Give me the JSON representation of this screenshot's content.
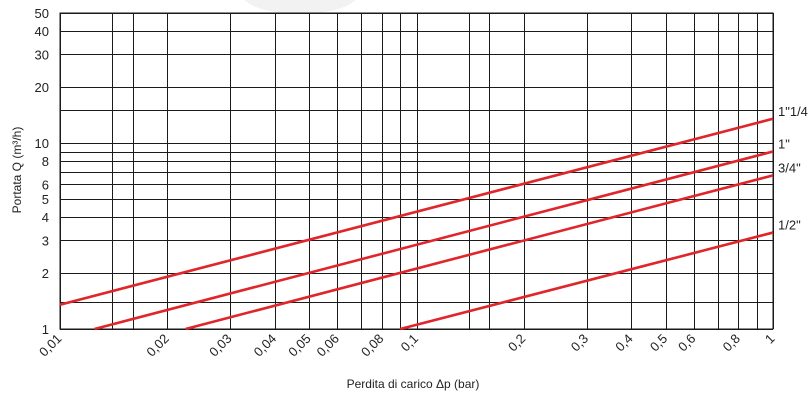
{
  "chart_data": {
    "type": "line",
    "x_scale": "log",
    "y_scale": "log",
    "xlabel": "Perdita di carico Δp (bar)",
    "ylabel": "Portata Q (m³/h)",
    "xlim": [
      0.01,
      1
    ],
    "ylim": [
      1,
      50
    ],
    "x_tick_labels": [
      "0,01",
      "0,02",
      "0,03",
      "0,04",
      "0,05",
      "0,06",
      "0,08",
      "0,1",
      "0,2",
      "0,3",
      "0,4",
      "0,5",
      "0,6",
      "0,8",
      "1"
    ],
    "x_tick_values": [
      0.01,
      0.02,
      0.03,
      0.04,
      0.05,
      0.06,
      0.08,
      0.1,
      0.2,
      0.3,
      0.4,
      0.5,
      0.6,
      0.8,
      1
    ],
    "x_grid_values": [
      0.01,
      0.014,
      0.016,
      0.02,
      0.03,
      0.04,
      0.05,
      0.06,
      0.07,
      0.08,
      0.09,
      0.1,
      0.14,
      0.16,
      0.2,
      0.3,
      0.4,
      0.5,
      0.6,
      0.7,
      0.8,
      0.9,
      1
    ],
    "y_tick_labels": [
      "1",
      "2",
      "3",
      "4",
      "5",
      "6",
      "8",
      "10",
      "20",
      "30",
      "40",
      "50"
    ],
    "y_tick_values": [
      1,
      2,
      3,
      4,
      5,
      6,
      8,
      10,
      20,
      30,
      40,
      50
    ],
    "y_grid_values": [
      1,
      1.4,
      2,
      3,
      4,
      5,
      6,
      7,
      8,
      9,
      10,
      15,
      20,
      30,
      40,
      50
    ],
    "grid": true,
    "series_labels_position": "right",
    "series_color": "#e0262a",
    "series": [
      {
        "name": "1\"1/4",
        "x": [
          0.01,
          1
        ],
        "y": [
          1.35,
          13.5
        ]
      },
      {
        "name": "1\"",
        "x": [
          0.0125,
          1
        ],
        "y": [
          1.0,
          9.0
        ]
      },
      {
        "name": "3/4\"",
        "x": [
          0.0225,
          1
        ],
        "y": [
          1.0,
          6.7
        ]
      },
      {
        "name": "1/2\"",
        "x": [
          0.09,
          1
        ],
        "y": [
          1.0,
          3.3
        ]
      }
    ]
  }
}
